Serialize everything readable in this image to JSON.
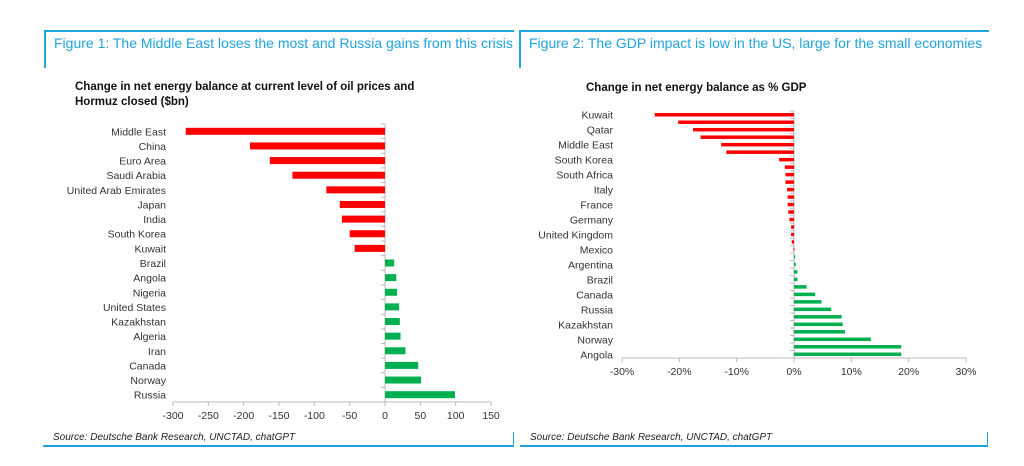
{
  "figure1": {
    "heading": "Figure 1: The Middle East loses the most and Russia gains from this crisis",
    "source": "Source: Deutsche Bank Research, UNCTAD, chatGPT"
  },
  "figure2": {
    "heading": "Figure 2: The GDP impact is low in the US, large for the small economies",
    "source": "Source: Deutsche Bank Research, UNCTAD, chatGPT"
  },
  "colors": {
    "negative": "#ff0000",
    "positive": "#00b050",
    "accent": "#1fa3dc"
  },
  "chart_data": [
    {
      "type": "bar",
      "orientation": "horizontal",
      "title": "Change in net energy balance at current level of oil prices and Hormuz closed ($bn)",
      "xlim": [
        -300,
        150
      ],
      "xticks": [
        -300,
        -250,
        -200,
        -150,
        -100,
        -50,
        0,
        50,
        100,
        150
      ],
      "xtick_labels": [
        "-300",
        "-250",
        "-200",
        "-150",
        "-100",
        "-50",
        "0",
        "50",
        "100",
        "150"
      ],
      "categories": [
        "Middle East",
        "China",
        "Euro Area",
        "Saudi Arabia",
        "United Arab Emirates",
        "Japan",
        "India",
        "South Korea",
        "Kuwait",
        "Brazil",
        "Angola",
        "Nigeria",
        "United States",
        "Kazakhstan",
        "Algeria",
        "Iran",
        "Canada",
        "Norway",
        "Russia"
      ],
      "values": [
        -282,
        -191,
        -163,
        -131,
        -83,
        -64,
        -61,
        -50,
        -43,
        13,
        16,
        17,
        20,
        21,
        22,
        29,
        47,
        51,
        99
      ]
    },
    {
      "type": "bar",
      "orientation": "horizontal",
      "title": "Change in net energy balance as % GDP",
      "xlim": [
        -30,
        30
      ],
      "xticks": [
        -30,
        -20,
        -10,
        0,
        10,
        20,
        30
      ],
      "xtick_labels": [
        "-30%",
        "-20%",
        "-10%",
        "0%",
        "10%",
        "20%",
        "30%"
      ],
      "categories": [
        "Kuwait",
        "",
        "Qatar",
        "",
        "Middle East",
        "",
        "South Korea",
        "",
        "South Africa",
        "",
        "Italy",
        "",
        "France",
        "",
        "Germany",
        "",
        "United Kingdom",
        "",
        "Mexico",
        "",
        "Argentina",
        "",
        "Brazil",
        "",
        "Canada",
        "",
        "Russia",
        "",
        "Kazakhstan",
        "",
        "Norway",
        "",
        "Angola"
      ],
      "values": [
        -24.3,
        -20.2,
        -17.6,
        -16.3,
        -12.7,
        -11.8,
        -2.6,
        -1.6,
        -1.5,
        -1.5,
        -1.2,
        -1.1,
        -1.1,
        -1.0,
        -0.8,
        -0.5,
        -0.5,
        -0.4,
        -0.1,
        0.2,
        0.3,
        0.6,
        0.6,
        2.2,
        3.7,
        4.8,
        6.5,
        8.3,
        8.5,
        8.9,
        13.4,
        18.7,
        18.7
      ]
    }
  ]
}
